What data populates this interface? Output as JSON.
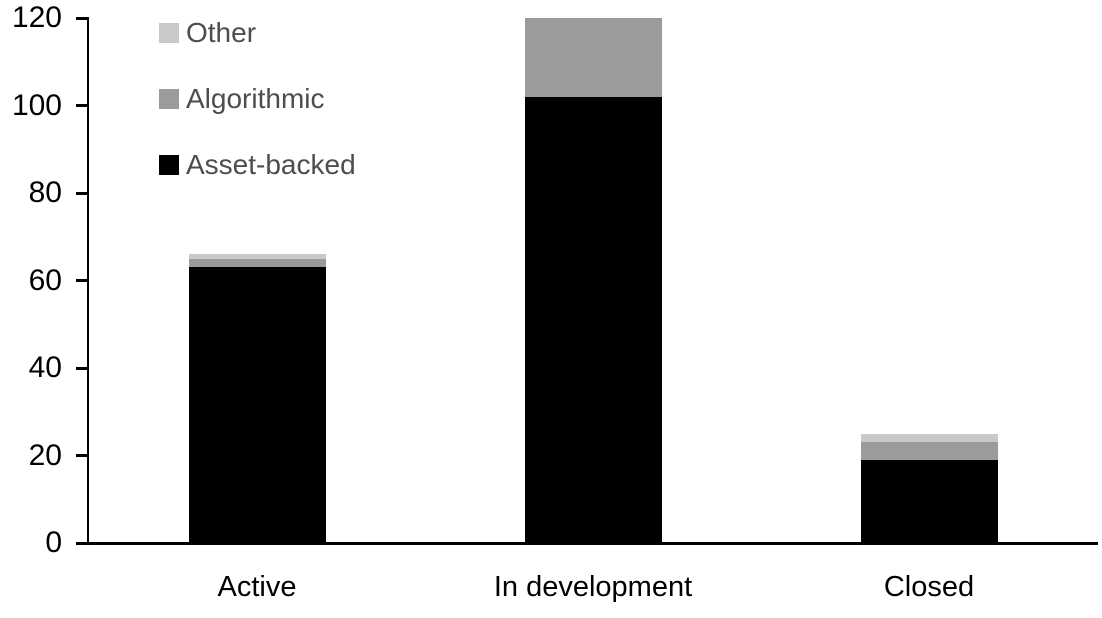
{
  "chart_data": {
    "type": "bar",
    "stacked": true,
    "title": "",
    "xlabel": "",
    "ylabel": "",
    "categories": [
      "Active",
      "In development",
      "Closed"
    ],
    "series": [
      {
        "name": "Asset-backed",
        "color": "#000000",
        "values": [
          63,
          102,
          19
        ]
      },
      {
        "name": "Algorithmic",
        "color": "#9b9b9b",
        "values": [
          2,
          18,
          4
        ]
      },
      {
        "name": "Other",
        "color": "#c9c9c9",
        "values": [
          1,
          0,
          2
        ]
      }
    ],
    "category_totals": [
      66,
      120,
      25
    ],
    "ylim": [
      0,
      120
    ],
    "yticks": [
      0,
      20,
      40,
      60,
      80,
      100,
      120
    ],
    "grid": false,
    "legend_position": "top-left",
    "legend_order_top_to_bottom": [
      "Other",
      "Algorithmic",
      "Asset-backed"
    ],
    "colors": {
      "axis": "#000000",
      "tick_label": "#000000",
      "category_label": "#000000",
      "legend_text": "#4d4d4d",
      "background": "#ffffff"
    }
  }
}
